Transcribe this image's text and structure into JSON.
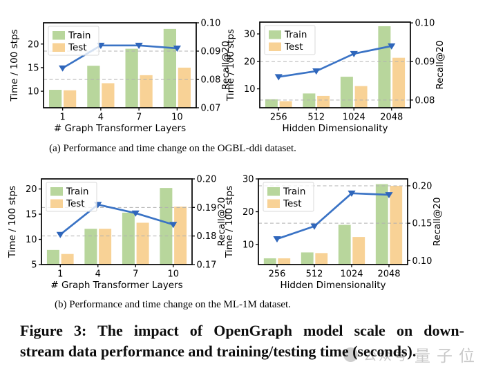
{
  "figure": {
    "caption_a": "(a)  Performance and time change on the OGBL-ddi dataset.",
    "caption_b": "(b)  Performance and time change on the ML-1M dataset.",
    "caption_line1": "Figure 3: The impact of OpenGraph model scale on down-",
    "caption_line2": "stream data performance and training/testing time (seconds)."
  },
  "watermark": {
    "logo": "circle-logo",
    "text_left": "公众号",
    "text_right": "量子位",
    "color": "#9e9e9e"
  },
  "colors": {
    "train_bar": "#b8d69c",
    "test_bar": "#f8d296",
    "recall_line": "#3a73c5",
    "recall_marker": "#2f66bb",
    "gridline": "#b0b0b0",
    "axis": "#000000",
    "legend_border": "#d9d9d9",
    "legend_fill": "#ffffff"
  },
  "chart_data": [
    {
      "id": "a-layers",
      "type": "bar+line",
      "dataset": "OGBL-ddi",
      "categories": [
        "1",
        "4",
        "7",
        "10"
      ],
      "xlabel": "# Graph Transformer Layers",
      "left_axis": {
        "label": "Time / 100 stps",
        "ticks": [
          10,
          15,
          20
        ],
        "lim": [
          6.5,
          24.5
        ]
      },
      "right_axis": {
        "label": "Recall@20",
        "ticks": [
          0.07,
          0.08,
          0.09,
          0.1
        ],
        "lim": [
          0.07,
          0.1
        ],
        "gridlines": [
          0.08,
          0.09
        ]
      },
      "legend": {
        "position": "upper left",
        "entries": [
          "Train",
          "Test"
        ]
      },
      "series": [
        {
          "name": "Train",
          "type": "bar",
          "axis": "left",
          "values": [
            10.3,
            15.4,
            19.0,
            23.2
          ]
        },
        {
          "name": "Test",
          "type": "bar",
          "axis": "left",
          "values": [
            10.2,
            11.7,
            13.4,
            15.0
          ]
        },
        {
          "name": "Recall@20",
          "type": "line",
          "axis": "right",
          "marker": "triangle-down",
          "values": [
            0.084,
            0.092,
            0.092,
            0.091
          ]
        }
      ]
    },
    {
      "id": "a-dims",
      "type": "bar+line",
      "dataset": "OGBL-ddi",
      "categories": [
        "256",
        "512",
        "1024",
        "2048"
      ],
      "xlabel": "Hidden Dimensionality",
      "left_axis": {
        "label": "Time / 100 stps",
        "ticks": [
          10,
          20,
          30
        ],
        "lim": [
          3.1,
          34.3
        ]
      },
      "right_axis": {
        "label": "Recall@20",
        "ticks": [
          0.08,
          0.09,
          0.1
        ],
        "lim": [
          0.078,
          0.1002
        ],
        "gridlines": [
          0.08,
          0.09
        ]
      },
      "legend": {
        "position": "upper left",
        "entries": [
          "Train",
          "Test"
        ]
      },
      "series": [
        {
          "name": "Train",
          "type": "bar",
          "axis": "left",
          "values": [
            6.2,
            8.3,
            14.4,
            32.8
          ]
        },
        {
          "name": "Test",
          "type": "bar",
          "axis": "left",
          "values": [
            5.5,
            7.4,
            11.0,
            21.3
          ]
        },
        {
          "name": "Recall@20",
          "type": "line",
          "axis": "right",
          "marker": "triangle-down",
          "values": [
            0.086,
            0.0875,
            0.092,
            0.094
          ]
        }
      ]
    },
    {
      "id": "b-layers",
      "type": "bar+line",
      "dataset": "ML-1M",
      "categories": [
        "1",
        "4",
        "7",
        "10"
      ],
      "xlabel": "# Graph Transformer Layers",
      "left_axis": {
        "label": "Time / 100 stps",
        "ticks": [
          5,
          10,
          15,
          20
        ],
        "lim": [
          5,
          22
        ]
      },
      "right_axis": {
        "label": "Recall@20",
        "ticks": [
          0.17,
          0.18,
          0.19,
          0.2
        ],
        "lim": [
          0.17,
          0.2
        ],
        "gridlines": [
          0.18,
          0.19
        ]
      },
      "legend": {
        "position": "upper left",
        "entries": [
          "Train",
          "Test"
        ]
      },
      "series": [
        {
          "name": "Train",
          "type": "bar",
          "axis": "left",
          "values": [
            7.9,
            12.1,
            15.3,
            20.2
          ]
        },
        {
          "name": "Test",
          "type": "bar",
          "axis": "left",
          "values": [
            7.1,
            12.1,
            13.3,
            16.5
          ]
        },
        {
          "name": "Recall@20",
          "type": "line",
          "axis": "right",
          "marker": "triangle-down",
          "values": [
            0.1805,
            0.191,
            0.188,
            0.184
          ]
        }
      ]
    },
    {
      "id": "b-dims",
      "type": "bar+line",
      "dataset": "ML-1M",
      "categories": [
        "256",
        "512",
        "1024",
        "2048"
      ],
      "xlabel": "Hidden Dimensionality",
      "left_axis": {
        "label": "Time / 100 stps",
        "ticks": [
          10,
          20,
          30
        ],
        "lim": [
          3.9,
          30
        ]
      },
      "right_axis": {
        "label": "Recall@20",
        "ticks": [
          0.1,
          0.15,
          0.2
        ],
        "lim": [
          0.0948,
          0.2092
        ],
        "gridlines": [
          0.15,
          0.2
        ]
      },
      "legend": {
        "position": "upper left",
        "entries": [
          "Train",
          "Test"
        ]
      },
      "series": [
        {
          "name": "Train",
          "type": "bar",
          "axis": "left",
          "values": [
            5.8,
            7.6,
            16.0,
            28.4
          ]
        },
        {
          "name": "Test",
          "type": "bar",
          "axis": "left",
          "values": [
            5.8,
            7.4,
            12.3,
            27.9
          ]
        },
        {
          "name": "Recall@20",
          "type": "line",
          "axis": "right",
          "marker": "triangle-down",
          "values": [
            0.129,
            0.146,
            0.19,
            0.188
          ]
        }
      ]
    }
  ]
}
